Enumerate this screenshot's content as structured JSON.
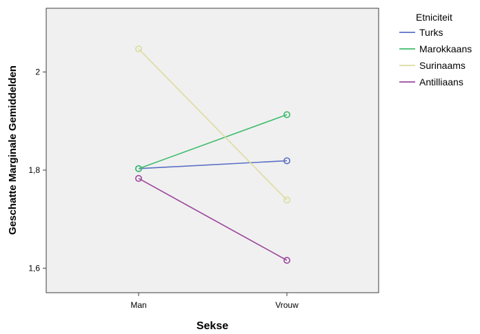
{
  "chart_data": {
    "type": "line",
    "title": "",
    "xlabel": "Sekse",
    "ylabel": "Geschatte Marginale Gemiddelden",
    "categories": [
      "Man",
      "Vrouw"
    ],
    "ylim": [
      1.55,
      2.13
    ],
    "yticks": [
      1.6,
      1.8,
      2.0
    ],
    "ytick_labels": [
      "1,6",
      "1,8",
      "2"
    ],
    "legend_title": "Etniciteit",
    "legend_position": "right",
    "grid": false,
    "plot_background": "#f0f0f0",
    "series": [
      {
        "name": "Turks",
        "values": [
          1.803,
          1.819
        ],
        "color": "#5a6fc4"
      },
      {
        "name": "Marokkaans",
        "values": [
          1.803,
          1.913
        ],
        "color": "#3dbb6a"
      },
      {
        "name": "Surinaams",
        "values": [
          2.047,
          1.739
        ],
        "color": "#dcdca0"
      },
      {
        "name": "Antilliaans",
        "values": [
          1.783,
          1.616
        ],
        "color": "#9c479c"
      }
    ]
  }
}
